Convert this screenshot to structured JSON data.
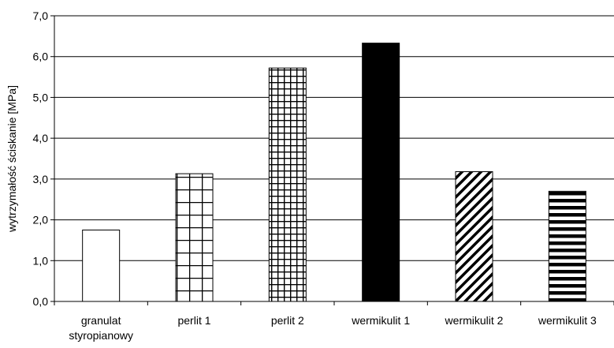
{
  "chart_data": {
    "type": "bar",
    "title": "",
    "xlabel": "",
    "ylabel": "wytrzymałość ściskanie [MPa]",
    "ylim": [
      0,
      7
    ],
    "y_ticks": [
      "0,0",
      "1,0",
      "2,0",
      "3,0",
      "4,0",
      "5,0",
      "6,0",
      "7,0"
    ],
    "grid": "horizontal",
    "categories": [
      [
        "granulat",
        "styropianowy"
      ],
      [
        "perlit 1"
      ],
      [
        "perlit 2"
      ],
      [
        "wermikulit 1"
      ],
      [
        "wermikulit 2"
      ],
      [
        "wermikulit 3"
      ]
    ],
    "values": [
      1.75,
      3.13,
      5.72,
      6.33,
      3.18,
      2.7
    ],
    "fills": [
      "white",
      "grid-coarse",
      "grid-fine",
      "solid-black",
      "diagonal",
      "horizontal-stripes"
    ]
  }
}
